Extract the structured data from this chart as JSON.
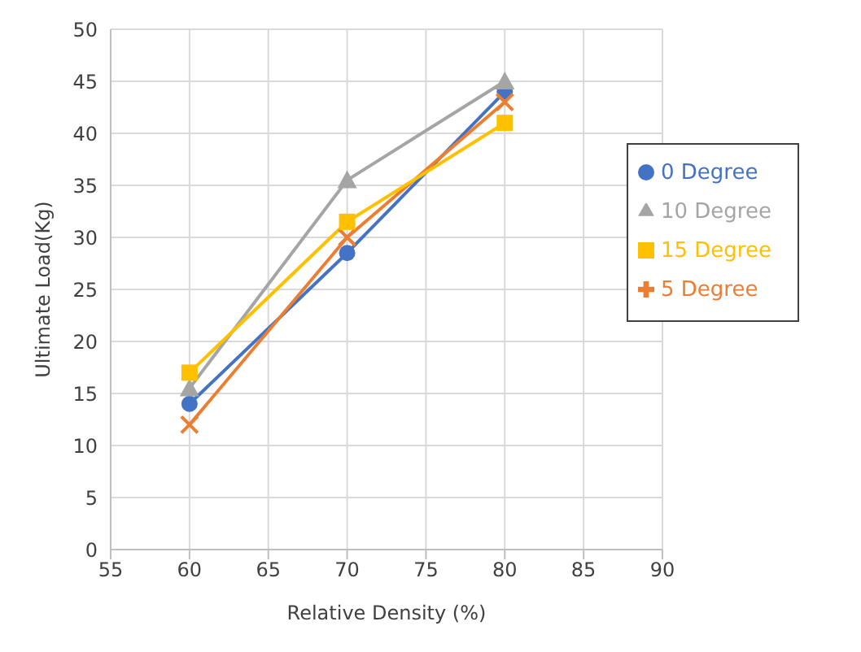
{
  "chart_data": {
    "type": "line",
    "xlabel": "Relative Density (%)",
    "ylabel": "Ultimate Load(Kg)",
    "x": [
      60,
      70,
      80
    ],
    "series": [
      {
        "name": "0 Degree",
        "color": "#4472c4",
        "values": [
          14,
          28.5,
          44
        ],
        "marker": "circle"
      },
      {
        "name": "5 Degree",
        "color": "#ed7d31",
        "values": [
          12,
          30,
          43
        ],
        "marker": "cross"
      },
      {
        "name": "10 Degree",
        "color": "#a5a5a5",
        "values": [
          15.5,
          35.5,
          45
        ],
        "marker": "triangle"
      },
      {
        "name": "15 Degree",
        "color": "#ffc000",
        "values": [
          17,
          31.5,
          41
        ],
        "marker": "square"
      }
    ],
    "xlim": [
      55,
      90
    ],
    "xticks": [
      55,
      60,
      65,
      70,
      75,
      80,
      85,
      90
    ],
    "ylim": [
      0,
      50
    ],
    "yticks": [
      0,
      5,
      10,
      15,
      20,
      25,
      30,
      35,
      40,
      45,
      50
    ],
    "grid": true,
    "legend": "right"
  }
}
